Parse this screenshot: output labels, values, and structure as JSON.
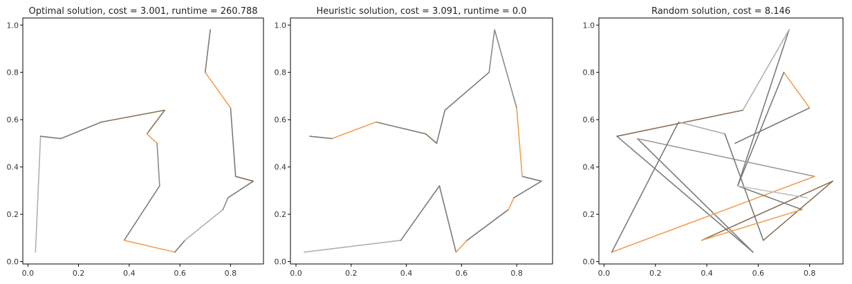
{
  "chart_data": [
    {
      "type": "line",
      "title": "Optimal solution, cost = 3.001, runtime = 260.788",
      "xlim": [
        -0.02,
        0.93
      ],
      "ylim": [
        -0.01,
        1.03
      ],
      "xticks": [
        "0.0",
        "0.2",
        "0.4",
        "0.6",
        "0.8"
      ],
      "yticks": [
        "0.0",
        "0.2",
        "0.4",
        "0.6",
        "0.8",
        "1.0"
      ],
      "xtick_values": [
        0.0,
        0.2,
        0.4,
        0.6,
        0.8
      ],
      "ytick_values": [
        0.0,
        0.2,
        0.4,
        0.6,
        0.8,
        1.0
      ],
      "grid": false,
      "path": [
        [
          0.03,
          0.04
        ],
        [
          0.05,
          0.53
        ],
        [
          0.13,
          0.52
        ],
        [
          0.29,
          0.59
        ],
        [
          0.54,
          0.64
        ],
        [
          0.47,
          0.54
        ],
        [
          0.51,
          0.5
        ],
        [
          0.52,
          0.32
        ],
        [
          0.38,
          0.09
        ],
        [
          0.58,
          0.04
        ],
        [
          0.62,
          0.09
        ],
        [
          0.77,
          0.22
        ],
        [
          0.79,
          0.27
        ],
        [
          0.89,
          0.34
        ],
        [
          0.82,
          0.36
        ],
        [
          0.8,
          0.65
        ],
        [
          0.7,
          0.8
        ],
        [
          0.72,
          0.98
        ]
      ],
      "segment_colors": [
        "#b0b0b0",
        "#7a7a7a",
        "#7a7a7a",
        "#8a6f52",
        "#8a6f52",
        "#f0a050",
        "#8a8a8a",
        "#7a7a7a",
        "#f0a050",
        "#7a7a7a",
        "#b0b0b0",
        "#8a8a8a",
        "#7a7a7a",
        "#8a6f52",
        "#7a7a7a",
        "#f0a050",
        "#7a7a7a"
      ]
    },
    {
      "type": "line",
      "title": "Heuristic solution, cost = 3.091, runtime = 0.0",
      "xlim": [
        -0.02,
        0.93
      ],
      "ylim": [
        -0.01,
        1.03
      ],
      "xticks": [
        "0.0",
        "0.2",
        "0.4",
        "0.6",
        "0.8"
      ],
      "yticks": [
        "0.0",
        "0.2",
        "0.4",
        "0.6",
        "0.8",
        "1.0"
      ],
      "xtick_values": [
        0.0,
        0.2,
        0.4,
        0.6,
        0.8
      ],
      "ytick_values": [
        0.0,
        0.2,
        0.4,
        0.6,
        0.8,
        1.0
      ],
      "grid": false,
      "path": [
        [
          0.03,
          0.04
        ],
        [
          0.38,
          0.09
        ],
        [
          0.52,
          0.32
        ],
        [
          0.58,
          0.04
        ],
        [
          0.62,
          0.09
        ],
        [
          0.77,
          0.22
        ],
        [
          0.79,
          0.27
        ],
        [
          0.89,
          0.34
        ],
        [
          0.82,
          0.36
        ],
        [
          0.8,
          0.65
        ],
        [
          0.72,
          0.98
        ],
        [
          0.7,
          0.8
        ],
        [
          0.54,
          0.64
        ],
        [
          0.51,
          0.5
        ],
        [
          0.47,
          0.54
        ],
        [
          0.29,
          0.59
        ],
        [
          0.13,
          0.52
        ],
        [
          0.05,
          0.53
        ]
      ],
      "segment_colors": [
        "#b0b0b0",
        "#7a7a7a",
        "#7a7a7a",
        "#f0a050",
        "#7a7a7a",
        "#f0a050",
        "#7a7a7a",
        "#7a7a7a",
        "#f0a050",
        "#8a8a8a",
        "#8a8a8a",
        "#7a7a7a",
        "#7a7a7a",
        "#8a6f52",
        "#7a7a7a",
        "#f0a050",
        "#7a7a7a"
      ]
    },
    {
      "type": "line",
      "title": "Random solution, cost = 8.146",
      "xlim": [
        -0.02,
        0.93
      ],
      "ylim": [
        -0.01,
        1.03
      ],
      "xticks": [
        "0.0",
        "0.2",
        "0.4",
        "0.6",
        "0.8"
      ],
      "yticks": [
        "0.0",
        "0.2",
        "0.4",
        "0.6",
        "0.8",
        "1.0"
      ],
      "xtick_values": [
        0.0,
        0.2,
        0.4,
        0.6,
        0.8
      ],
      "ytick_values": [
        0.0,
        0.2,
        0.4,
        0.6,
        0.8,
        1.0
      ],
      "grid": false,
      "path": [
        [
          0.51,
          0.5
        ],
        [
          0.8,
          0.65
        ],
        [
          0.7,
          0.8
        ],
        [
          0.52,
          0.32
        ],
        [
          0.72,
          0.98
        ],
        [
          0.54,
          0.64
        ],
        [
          0.05,
          0.53
        ],
        [
          0.58,
          0.04
        ],
        [
          0.13,
          0.52
        ],
        [
          0.82,
          0.36
        ],
        [
          0.03,
          0.04
        ],
        [
          0.29,
          0.59
        ],
        [
          0.47,
          0.54
        ],
        [
          0.62,
          0.09
        ],
        [
          0.89,
          0.34
        ],
        [
          0.38,
          0.09
        ],
        [
          0.77,
          0.22
        ],
        [
          0.52,
          0.32
        ],
        [
          0.79,
          0.27
        ]
      ],
      "segment_colors": [
        "#7a7a7a",
        "#f0a050",
        "#7a7a7a",
        "#7a7a7a",
        "#b0b0b0",
        "#8a6f52",
        "#7a7a7a",
        "#7a7a7a",
        "#9a9a9a",
        "#f0a050",
        "#7a7a7a",
        "#b0b0b0",
        "#7a7a7a",
        "#8a6f52",
        "#8a6f52",
        "#f0a050",
        "#7a7a7a",
        "#c0c0c0"
      ]
    }
  ]
}
